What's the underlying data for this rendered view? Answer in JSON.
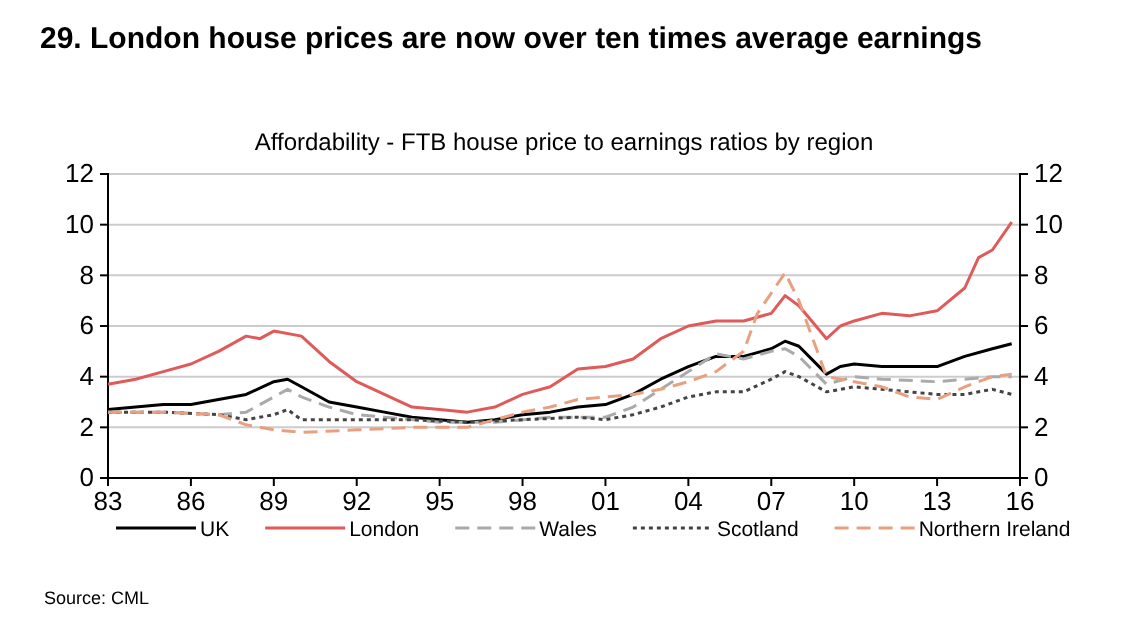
{
  "chart_data": {
    "type": "line",
    "title": "29. London house prices are now over ten times average earnings",
    "subtitle": "Affordability - FTB house price to earnings ratios by region",
    "annotations": [
      "Source: CML"
    ],
    "xlim": [
      1983,
      2016
    ],
    "xticks": [
      {
        "value": 1983,
        "label": "83"
      },
      {
        "value": 1986,
        "label": "86"
      },
      {
        "value": 1989,
        "label": "89"
      },
      {
        "value": 1992,
        "label": "92"
      },
      {
        "value": 1995,
        "label": "95"
      },
      {
        "value": 1998,
        "label": "98"
      },
      {
        "value": 2001,
        "label": "01"
      },
      {
        "value": 2004,
        "label": "04"
      },
      {
        "value": 2007,
        "label": "07"
      },
      {
        "value": 2010,
        "label": "10"
      },
      {
        "value": 2013,
        "label": "13"
      },
      {
        "value": 2016,
        "label": "16"
      }
    ],
    "ylim": [
      0,
      12
    ],
    "yticks": [
      0,
      2,
      4,
      6,
      8,
      10,
      12
    ],
    "y2lim": [
      0,
      12
    ],
    "y2ticks": [
      0,
      2,
      4,
      6,
      8,
      10,
      12
    ],
    "grid": "y",
    "legend": "bottom",
    "series": [
      {
        "name": "UK",
        "color": "#000000",
        "line_style": "solid",
        "x": [
          1983,
          1984,
          1985,
          1986,
          1987,
          1988,
          1989,
          1989.5,
          1990,
          1991,
          1992,
          1993,
          1994,
          1995,
          1996,
          1997,
          1998,
          1999,
          2000,
          2001,
          2002,
          2003,
          2004,
          2005,
          2006,
          2007,
          2007.5,
          2008,
          2009,
          2009.5,
          2010,
          2011,
          2012,
          2013,
          2014,
          2015,
          2015.7
        ],
        "values": [
          2.7,
          2.8,
          2.9,
          2.9,
          3.1,
          3.3,
          3.8,
          3.9,
          3.6,
          3.0,
          2.8,
          2.6,
          2.4,
          2.3,
          2.2,
          2.3,
          2.5,
          2.6,
          2.8,
          2.9,
          3.3,
          3.9,
          4.4,
          4.8,
          4.8,
          5.1,
          5.4,
          5.2,
          4.1,
          4.4,
          4.5,
          4.4,
          4.4,
          4.4,
          4.8,
          5.1,
          5.3
        ]
      },
      {
        "name": "London",
        "color": "#e05a5a",
        "line_style": "solid",
        "x": [
          1983,
          1984,
          1985,
          1986,
          1987,
          1988,
          1988.5,
          1989,
          1990,
          1991,
          1992,
          1993,
          1994,
          1995,
          1996,
          1997,
          1998,
          1999,
          2000,
          2001,
          2002,
          2003,
          2004,
          2005,
          2006,
          2007,
          2007.5,
          2008,
          2009,
          2009.5,
          2010,
          2011,
          2012,
          2013,
          2014,
          2014.5,
          2015,
          2015.7
        ],
        "values": [
          3.7,
          3.9,
          4.2,
          4.5,
          5.0,
          5.6,
          5.5,
          5.8,
          5.6,
          4.6,
          3.8,
          3.3,
          2.8,
          2.7,
          2.6,
          2.8,
          3.3,
          3.6,
          4.3,
          4.4,
          4.7,
          5.5,
          6.0,
          6.2,
          6.2,
          6.5,
          7.2,
          6.8,
          5.5,
          6.0,
          6.2,
          6.5,
          6.4,
          6.6,
          7.5,
          8.7,
          9.0,
          10.1
        ]
      },
      {
        "name": "Wales",
        "color": "#aaaaaa",
        "line_style": "dashed",
        "x": [
          1983,
          1985,
          1987,
          1988,
          1989,
          1989.5,
          1990,
          1991,
          1992,
          1993,
          1995,
          1997,
          1999,
          2001,
          2002,
          2003,
          2004,
          2005,
          2006,
          2007,
          2007.5,
          2008,
          2009,
          2010,
          2011,
          2013,
          2015,
          2015.7
        ],
        "values": [
          2.6,
          2.6,
          2.5,
          2.6,
          3.2,
          3.5,
          3.2,
          2.8,
          2.5,
          2.4,
          2.2,
          2.2,
          2.4,
          2.4,
          2.8,
          3.5,
          4.2,
          4.9,
          4.7,
          5.0,
          5.1,
          4.8,
          3.7,
          4.0,
          3.9,
          3.8,
          4.0,
          4.0
        ]
      },
      {
        "name": "Scotland",
        "color": "#444444",
        "line_style": "dotted",
        "x": [
          1983,
          1985,
          1987,
          1988,
          1989,
          1989.5,
          1990,
          1992,
          1994,
          1996,
          1998,
          2000,
          2001,
          2002,
          2003,
          2004,
          2005,
          2006,
          2007,
          2007.5,
          2008,
          2009,
          2010,
          2011,
          2012,
          2013,
          2014,
          2015,
          2015.7
        ],
        "values": [
          2.6,
          2.6,
          2.5,
          2.3,
          2.5,
          2.7,
          2.3,
          2.3,
          2.3,
          2.2,
          2.3,
          2.4,
          2.3,
          2.5,
          2.8,
          3.2,
          3.4,
          3.4,
          3.9,
          4.2,
          4.0,
          3.4,
          3.6,
          3.5,
          3.4,
          3.3,
          3.3,
          3.5,
          3.3
        ]
      },
      {
        "name": "Northern Ireland",
        "color": "#e8a080",
        "line_style": "dashed",
        "x": [
          1983,
          1985,
          1987,
          1988,
          1989,
          1990,
          1992,
          1994,
          1996,
          1997,
          1998,
          1999,
          2000,
          2001,
          2002,
          2003,
          2004,
          2005,
          2006,
          2006.5,
          2007.5,
          2008,
          2009,
          2010,
          2011,
          2012,
          2013,
          2014,
          2015,
          2015.7
        ],
        "values": [
          2.6,
          2.6,
          2.5,
          2.1,
          1.9,
          1.8,
          1.9,
          2.0,
          2.0,
          2.3,
          2.6,
          2.8,
          3.1,
          3.2,
          3.3,
          3.5,
          3.8,
          4.2,
          5.0,
          6.5,
          8.1,
          7.0,
          4.0,
          3.8,
          3.6,
          3.2,
          3.1,
          3.6,
          4.0,
          4.1
        ]
      }
    ]
  }
}
